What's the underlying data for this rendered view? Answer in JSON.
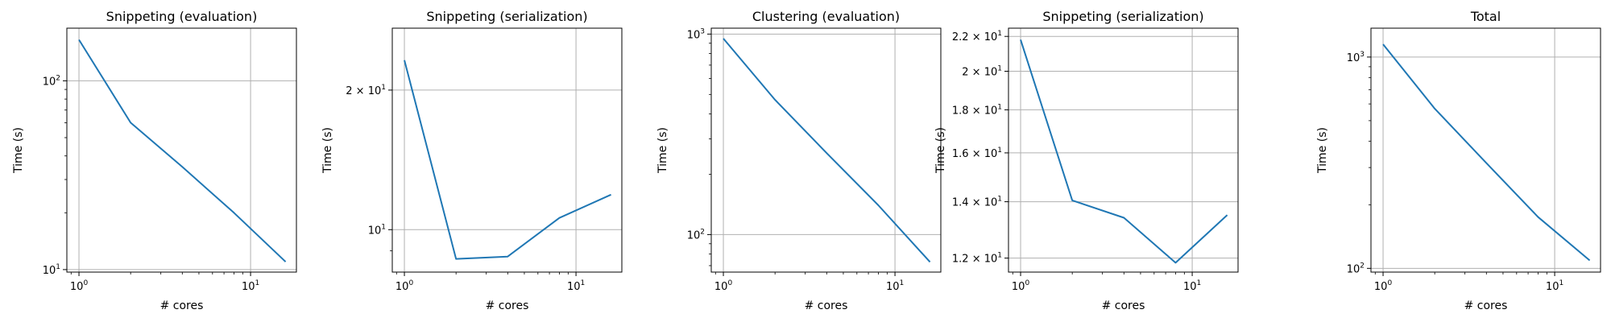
{
  "chart_data": [
    {
      "type": "line",
      "title": "Snippeting (evaluation)",
      "xlabel": "# cores",
      "ylabel": "Time (s)",
      "xscale": "log",
      "yscale": "log",
      "xlim": [
        0.85,
        18.5
      ],
      "ylim": [
        9.7,
        190
      ],
      "grid": true,
      "color": "#1f77b4",
      "x": [
        1,
        2,
        4,
        8,
        16
      ],
      "y": [
        165,
        60,
        35,
        20,
        11
      ],
      "xticks": [
        {
          "value": 1,
          "label": "10^0"
        },
        {
          "value": 10,
          "label": "10^1"
        }
      ],
      "yticks": [
        {
          "value": 10,
          "label": "10^1"
        },
        {
          "value": 100,
          "label": "10^2"
        }
      ]
    },
    {
      "type": "line",
      "title": "Snippeting (serialization)",
      "xlabel": "# cores",
      "ylabel": "Time (s)",
      "xscale": "log",
      "yscale": "log",
      "xlim": [
        0.85,
        18.5
      ],
      "ylim": [
        8.1,
        27.2
      ],
      "grid": true,
      "color": "#1f77b4",
      "x": [
        1,
        2,
        4,
        8,
        16
      ],
      "y": [
        23.2,
        8.65,
        8.75,
        10.6,
        11.9
      ],
      "xticks": [
        {
          "value": 1,
          "label": "10^0"
        },
        {
          "value": 10,
          "label": "10^1"
        }
      ],
      "yticks": [
        {
          "value": 10,
          "label": "10^1"
        },
        {
          "value": 20,
          "label": "2 × 10^1"
        }
      ]
    },
    {
      "type": "line",
      "title": "Clustering (evaluation)",
      "xlabel": "# cores",
      "ylabel": "Time (s)",
      "xscale": "log",
      "yscale": "log",
      "xlim": [
        0.85,
        18.5
      ],
      "ylim": [
        65,
        1070
      ],
      "grid": true,
      "color": "#1f77b4",
      "x": [
        1,
        2,
        4,
        8,
        16
      ],
      "y": [
        950,
        470,
        255,
        140,
        73
      ],
      "xticks": [
        {
          "value": 1,
          "label": "10^0"
        },
        {
          "value": 10,
          "label": "10^1"
        }
      ],
      "yticks": [
        {
          "value": 100,
          "label": "10^2"
        },
        {
          "value": 1000,
          "label": "10^3"
        }
      ]
    },
    {
      "type": "line",
      "title": "Snippeting (serialization)",
      "xlabel": "# cores",
      "ylabel": "Time (s)",
      "xscale": "log",
      "yscale": "log",
      "xlim": [
        0.85,
        18.5
      ],
      "ylim": [
        11.55,
        22.5
      ],
      "grid": true,
      "color": "#1f77b4",
      "x": [
        1,
        2,
        4,
        8,
        16
      ],
      "y": [
        21.8,
        14.05,
        13.4,
        11.85,
        13.5
      ],
      "xticks": [
        {
          "value": 1,
          "label": "10^0"
        },
        {
          "value": 10,
          "label": "10^1"
        }
      ],
      "yticks": [
        {
          "value": 12,
          "label": "1.2 × 10^1"
        },
        {
          "value": 14,
          "label": "1.4 × 10^1"
        },
        {
          "value": 16,
          "label": "1.6 × 10^1"
        },
        {
          "value": 18,
          "label": "1.8 × 10^1"
        },
        {
          "value": 20,
          "label": "2 × 10^1"
        },
        {
          "value": 22,
          "label": "2.2 × 10^1"
        }
      ]
    },
    {
      "type": "line",
      "title": "Total",
      "xlabel": "# cores",
      "ylabel": "Time (s)",
      "xscale": "log",
      "yscale": "log",
      "xlim": [
        0.85,
        18.5
      ],
      "ylim": [
        96,
        1370
      ],
      "grid": true,
      "color": "#1f77b4",
      "x": [
        1,
        2,
        4,
        8,
        16
      ],
      "y": [
        1150,
        570,
        315,
        175,
        109
      ],
      "xticks": [
        {
          "value": 1,
          "label": "10^0"
        },
        {
          "value": 10,
          "label": "10^1"
        }
      ],
      "yticks": [
        {
          "value": 100,
          "label": "10^2"
        },
        {
          "value": 1000,
          "label": "10^3"
        }
      ]
    }
  ]
}
